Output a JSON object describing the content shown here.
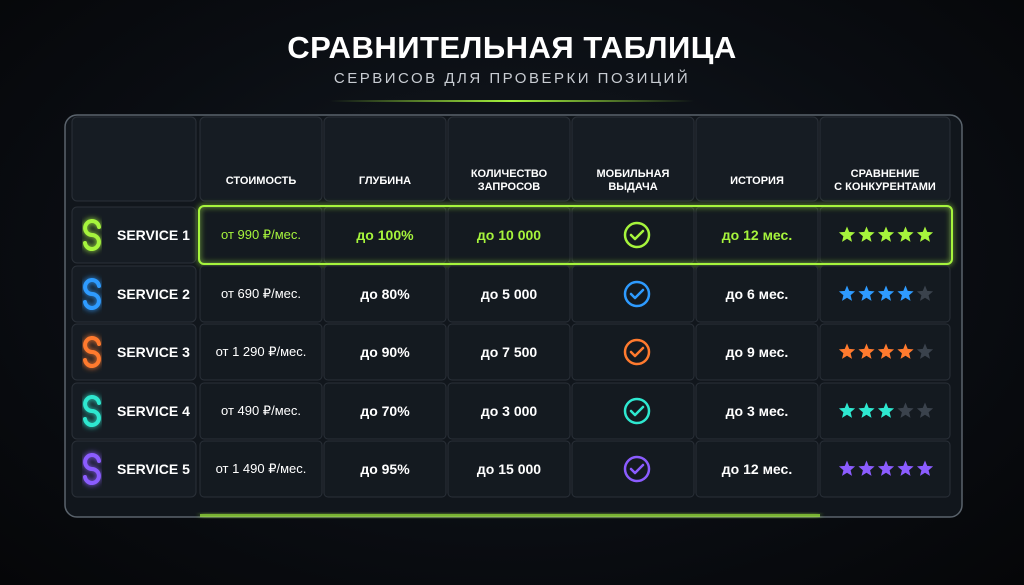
{
  "header": {
    "title": "СРАВНИТЕЛЬНАЯ ТАБЛИЦА",
    "subtitle": "СЕРВИСОВ ДЛЯ ПРОВЕРКИ ПОЗИЦИЙ"
  },
  "table": {
    "columns": [
      "СТОИМОСТЬ",
      "ГЛУБИНА",
      "КОЛИЧЕСТВО\nЗАПРОСОВ",
      "МОБИЛЬНАЯ\nВЫДАЧА",
      "ИСТОРИЯ",
      "СРАВНЕНИЕ\nС КОНКУРЕНТАМИ"
    ],
    "rating_max": 5,
    "rows": [
      {
        "service": "SERVICE 1",
        "color": "#a6f43c",
        "highlight": true,
        "price": "от 990 ₽/мес.",
        "depth": "до 100%",
        "requests": "до 10 000",
        "mobile": true,
        "history": "до 12 мес.",
        "rating": 5
      },
      {
        "service": "SERVICE 2",
        "color": "#2e9bff",
        "highlight": false,
        "price": "от 690 ₽/мес.",
        "depth": "до 80%",
        "requests": "до 5 000",
        "mobile": true,
        "history": "до 6 мес.",
        "rating": 4
      },
      {
        "service": "SERVICE 3",
        "color": "#ff7a2e",
        "highlight": false,
        "price": "от 1 290 ₽/мес.",
        "depth": "до 90%",
        "requests": "до 7 500",
        "mobile": true,
        "history": "до 9 мес.",
        "rating": 4
      },
      {
        "service": "SERVICE 4",
        "color": "#2ee8d0",
        "highlight": false,
        "price": "от 490 ₽/мес.",
        "depth": "до 70%",
        "requests": "до 3 000",
        "mobile": true,
        "history": "до 3 мес.",
        "rating": 3
      },
      {
        "service": "SERVICE 5",
        "color": "#8b5cff",
        "highlight": false,
        "price": "от 1 490 ₽/мес.",
        "depth": "до 95%",
        "requests": "до 15 000",
        "mobile": true,
        "history": "до 12 мес.",
        "rating": 5
      }
    ]
  }
}
